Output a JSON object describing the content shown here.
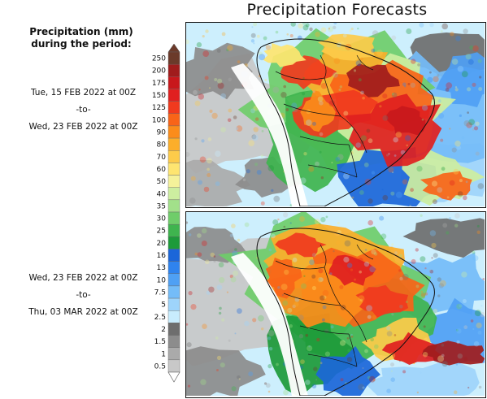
{
  "title": "Precipitation Forecasts",
  "legend": {
    "title_line1": "Precipitation (mm)",
    "title_line2": "during the period:",
    "levels": [
      {
        "label": "250",
        "color": "#6b3a2a"
      },
      {
        "label": "200",
        "color": "#a01c1c"
      },
      {
        "label": "175",
        "color": "#c8181c"
      },
      {
        "label": "150",
        "color": "#e02020"
      },
      {
        "label": "125",
        "color": "#f03a1e"
      },
      {
        "label": "100",
        "color": "#f86418"
      },
      {
        "label": "90",
        "color": "#fb8c1a"
      },
      {
        "label": "80",
        "color": "#fcae2a"
      },
      {
        "label": "70",
        "color": "#fdcb4a"
      },
      {
        "label": "60",
        "color": "#fee570"
      },
      {
        "label": "50",
        "color": "#f5f29a"
      },
      {
        "label": "40",
        "color": "#cdeea0"
      },
      {
        "label": "35",
        "color": "#a2e08a"
      },
      {
        "label": "30",
        "color": "#6fcd6a"
      },
      {
        "label": "25",
        "color": "#3fb44e"
      },
      {
        "label": "20",
        "color": "#1d9a3a"
      },
      {
        "label": "16",
        "color": "#1b66d9"
      },
      {
        "label": "13",
        "color": "#2f83ee"
      },
      {
        "label": "10",
        "color": "#4fa0f4"
      },
      {
        "label": "7.5",
        "color": "#74bcf8"
      },
      {
        "label": "5",
        "color": "#9ed4fb"
      },
      {
        "label": "2.5",
        "color": "#c8ecfd"
      },
      {
        "label": "2",
        "color": "#6e6e6e"
      },
      {
        "label": "1.5",
        "color": "#8c8c8c"
      },
      {
        "label": "1",
        "color": "#aaaaaa"
      },
      {
        "label": "0.5",
        "color": "#c8c8c8"
      }
    ]
  },
  "periods": [
    {
      "start": "Tue, 15 FEB 2022 at 00Z",
      "sep": "-to-",
      "end": "Wed, 23 FEB 2022 at 00Z"
    },
    {
      "start": "Wed, 23 FEB 2022 at 00Z",
      "sep": "-to-",
      "end": "Thu, 03 MAR 2022 at 00Z"
    }
  ]
}
